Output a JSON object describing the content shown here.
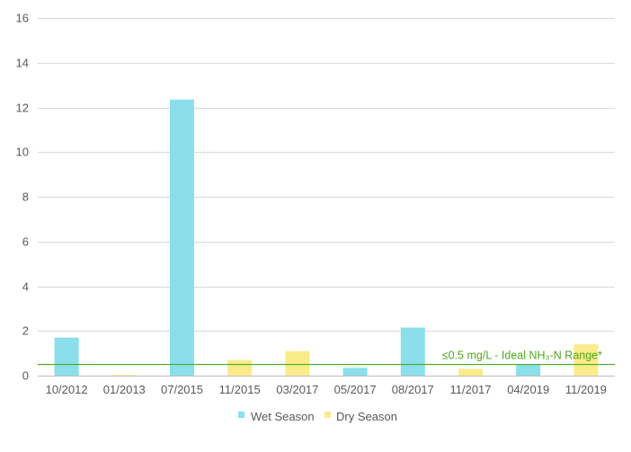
{
  "chart_data": {
    "type": "bar",
    "title": "",
    "xlabel": "",
    "ylabel": "",
    "ylim": [
      0,
      16
    ],
    "yticks": [
      0,
      2,
      4,
      6,
      8,
      10,
      12,
      14,
      16
    ],
    "grid": true,
    "legend_position": "bottom",
    "categories": [
      "10/2012",
      "01/2013",
      "07/2015",
      "11/2015",
      "03/2017",
      "05/2017",
      "08/2017",
      "11/2017",
      "04/2019",
      "11/2019"
    ],
    "series": [
      {
        "name": "Wet Season",
        "color": "#8ADFEB",
        "values": [
          1.7,
          null,
          12.35,
          null,
          null,
          0.35,
          2.15,
          null,
          0.5,
          null
        ]
      },
      {
        "name": "Dry Season",
        "color": "#FAEC8A",
        "values": [
          null,
          0.03,
          null,
          0.7,
          1.1,
          null,
          null,
          0.3,
          null,
          1.4
        ]
      }
    ],
    "reference_line": {
      "value": 0.5,
      "color": "#4CA81E",
      "label": "≤0.5 mg/L - Ideal NH₃-N Range*"
    }
  }
}
